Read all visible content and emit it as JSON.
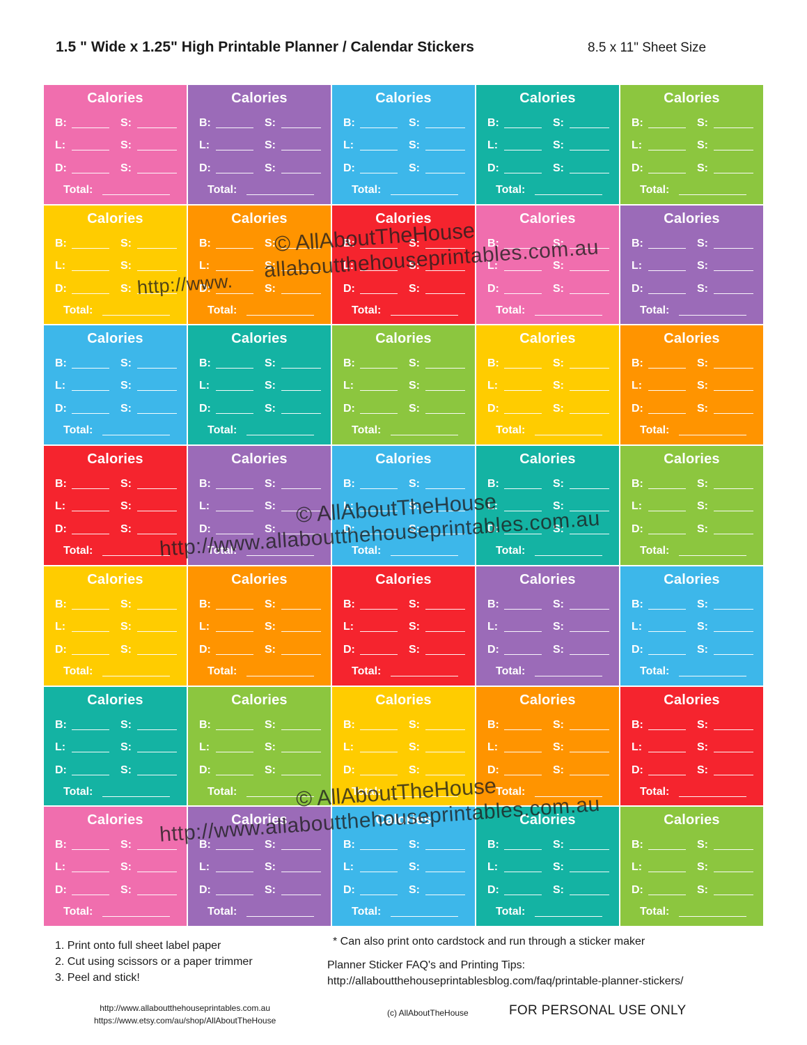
{
  "header": {
    "title": "1.5 \" Wide x 1.25\" High Printable Planner / Calendar Stickers",
    "sheet_size": "8.5 x 11\" Sheet Size"
  },
  "sticker_labels": {
    "title": "Calories",
    "b": "B:",
    "l": "L:",
    "d": "D:",
    "s": "S:",
    "total": "Total:"
  },
  "colors": {
    "pink": "#f06eae",
    "purple": "#9b6bb8",
    "blue": "#3db7ea",
    "teal": "#14b3a3",
    "green": "#8cc63f",
    "yellow": "#ffcc00",
    "orange": "#ff9400",
    "red": "#f5242e"
  },
  "grid_rows": [
    [
      "pink",
      "purple",
      "blue",
      "teal",
      "green"
    ],
    [
      "yellow",
      "orange",
      "red",
      "pink",
      "purple"
    ],
    [
      "blue",
      "teal",
      "green",
      "yellow",
      "orange"
    ],
    [
      "red",
      "purple",
      "blue",
      "teal",
      "green"
    ],
    [
      "yellow",
      "orange",
      "red",
      "purple",
      "blue"
    ],
    [
      "teal",
      "green",
      "yellow",
      "orange",
      "red"
    ],
    [
      "pink",
      "purple",
      "blue",
      "teal",
      "green"
    ]
  ],
  "watermark": {
    "copyright": "© AllAboutTheHouse",
    "url_short": "allaboutthehouseprintables.com.au",
    "url_full": "http://www.allaboutthehouseprintables.com.au"
  },
  "instructions": [
    "1. Print onto full sheet label paper",
    "2. Cut using scissors or a paper trimmer",
    "3. Peel and stick!"
  ],
  "note": "* Can also print onto cardstock and run through a sticker maker",
  "faq": {
    "label": "Planner Sticker FAQ's and Printing Tips:",
    "url": "http://allaboutthehouseprintablesblog.com/faq/printable-planner-stickers/"
  },
  "footer": {
    "website": "http://www.allaboutthehouseprintables.com.au",
    "etsy": "https://www.etsy.com/au/shop/AllAboutTheHouse",
    "copyright": "(c) AllAboutTheHouse",
    "personal_use": "FOR PERSONAL USE ONLY"
  }
}
